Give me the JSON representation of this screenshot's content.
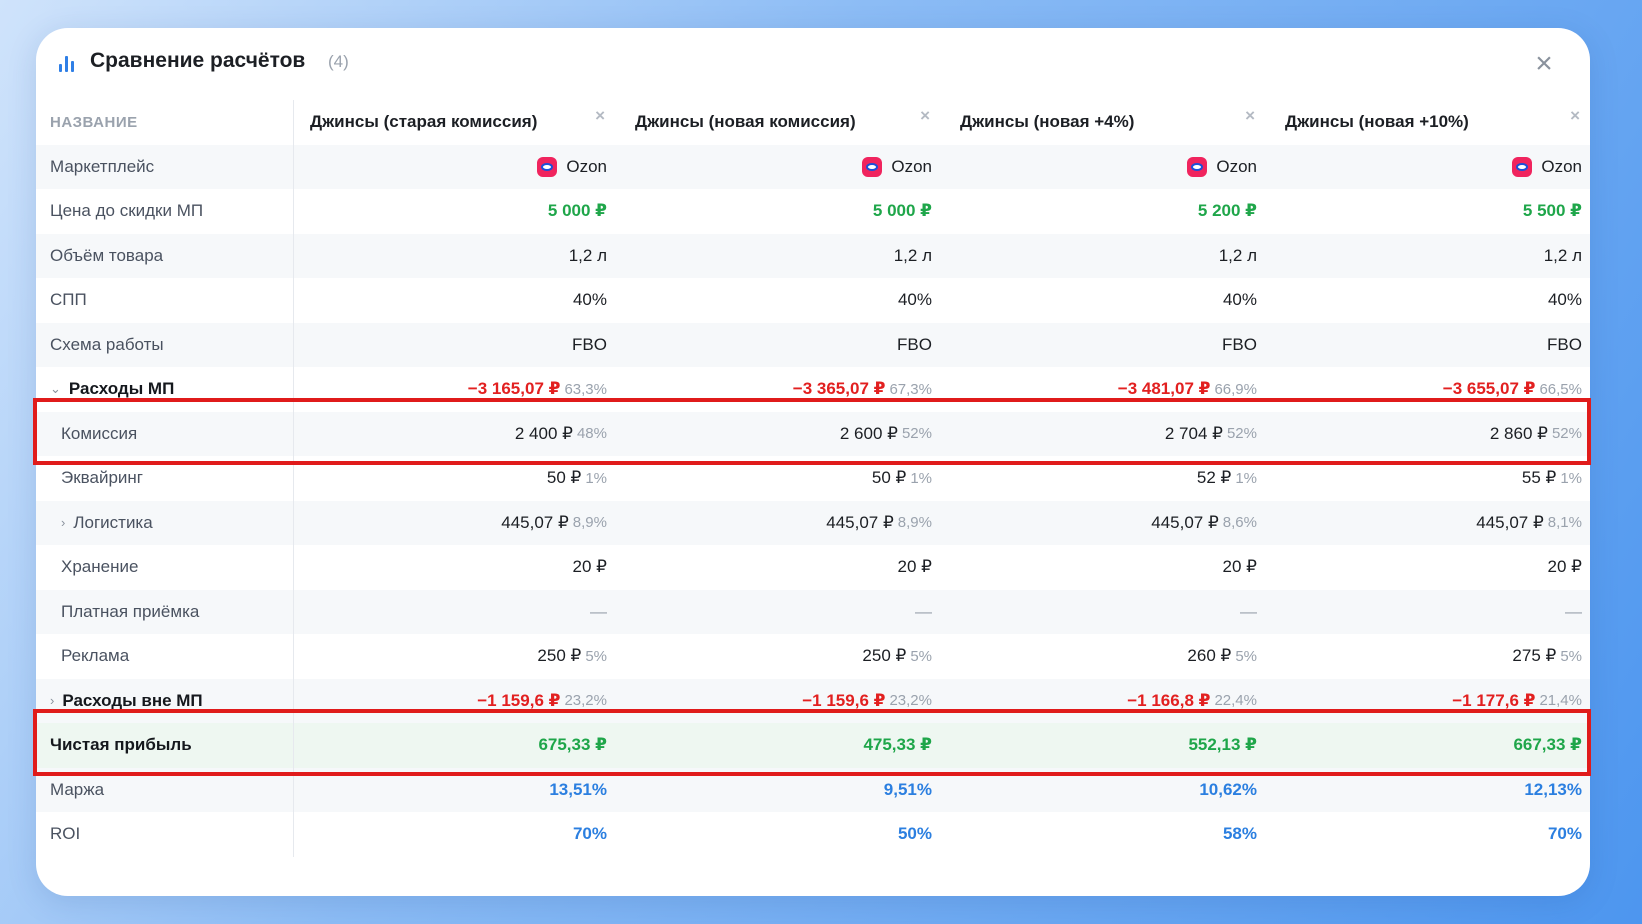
{
  "header": {
    "title": "Сравнение расчётов",
    "count": "(4)"
  },
  "columns": [
    {
      "name": "Джинсы (старая комиссия)"
    },
    {
      "name": "Джинсы (новая комиссия)"
    },
    {
      "name": "Джинсы (новая +4%)"
    },
    {
      "name": "Джинсы (новая +10%)"
    }
  ],
  "name_header": "НАЗВАНИЕ",
  "rows": {
    "marketplace": {
      "label": "Маркетплейс",
      "values": [
        "Ozon",
        "Ozon",
        "Ozon",
        "Ozon"
      ]
    },
    "price": {
      "label": "Цена до скидки МП",
      "values": [
        "5 000 ₽",
        "5 000 ₽",
        "5 200 ₽",
        "5 500 ₽"
      ]
    },
    "volume": {
      "label": "Объём товара",
      "values": [
        "1,2 л",
        "1,2 л",
        "1,2 л",
        "1,2 л"
      ]
    },
    "spp": {
      "label": "СПП",
      "values": [
        "40%",
        "40%",
        "40%",
        "40%"
      ]
    },
    "scheme": {
      "label": "Схема работы",
      "values": [
        "FBO",
        "FBO",
        "FBO",
        "FBO"
      ]
    },
    "mp_costs": {
      "label": "Расходы МП",
      "values": [
        "−3 165,07 ₽",
        "−3 365,07 ₽",
        "−3 481,07 ₽",
        "−3 655,07 ₽"
      ],
      "pcts": [
        "63,3%",
        "67,3%",
        "66,9%",
        "66,5%"
      ]
    },
    "commission": {
      "label": "Комиссия",
      "values": [
        "2 400 ₽",
        "2 600 ₽",
        "2 704 ₽",
        "2 860 ₽"
      ],
      "pcts": [
        "48%",
        "52%",
        "52%",
        "52%"
      ]
    },
    "acquiring": {
      "label": "Эквайринг",
      "values": [
        "50 ₽",
        "50 ₽",
        "52 ₽",
        "55 ₽"
      ],
      "pcts": [
        "1%",
        "1%",
        "1%",
        "1%"
      ]
    },
    "logistics": {
      "label": "Логистика",
      "values": [
        "445,07 ₽",
        "445,07 ₽",
        "445,07 ₽",
        "445,07 ₽"
      ],
      "pcts": [
        "8,9%",
        "8,9%",
        "8,6%",
        "8,1%"
      ]
    },
    "storage": {
      "label": "Хранение",
      "values": [
        "20 ₽",
        "20 ₽",
        "20 ₽",
        "20 ₽"
      ]
    },
    "paid_acceptance": {
      "label": "Платная приёмка",
      "values": [
        "—",
        "—",
        "—",
        "—"
      ]
    },
    "ads": {
      "label": "Реклама",
      "values": [
        "250 ₽",
        "250 ₽",
        "260 ₽",
        "275 ₽"
      ],
      "pcts": [
        "5%",
        "5%",
        "5%",
        "5%"
      ]
    },
    "non_mp_costs": {
      "label": "Расходы вне МП",
      "values": [
        "−1 159,6 ₽",
        "−1 159,6 ₽",
        "−1 166,8 ₽",
        "−1 177,6 ₽"
      ],
      "pcts": [
        "23,2%",
        "23,2%",
        "22,4%",
        "21,4%"
      ]
    },
    "net_profit": {
      "label": "Чистая прибыль",
      "values": [
        "675,33 ₽",
        "475,33 ₽",
        "552,13 ₽",
        "667,33 ₽"
      ]
    },
    "margin": {
      "label": "Маржа",
      "values": [
        "13,51%",
        "9,51%",
        "10,62%",
        "12,13%"
      ]
    },
    "roi": {
      "label": "ROI",
      "values": [
        "70%",
        "50%",
        "58%",
        "70%"
      ]
    }
  },
  "colors": {
    "green": "#1fa64a",
    "red": "#e22020",
    "blue": "#2b7fe0",
    "highlight": "#e01b1b",
    "accent": "#2f7fe6"
  },
  "icons": {
    "header": "bar-chart-icon",
    "close": "close-icon",
    "marketplace": "ozon-logo-icon"
  }
}
